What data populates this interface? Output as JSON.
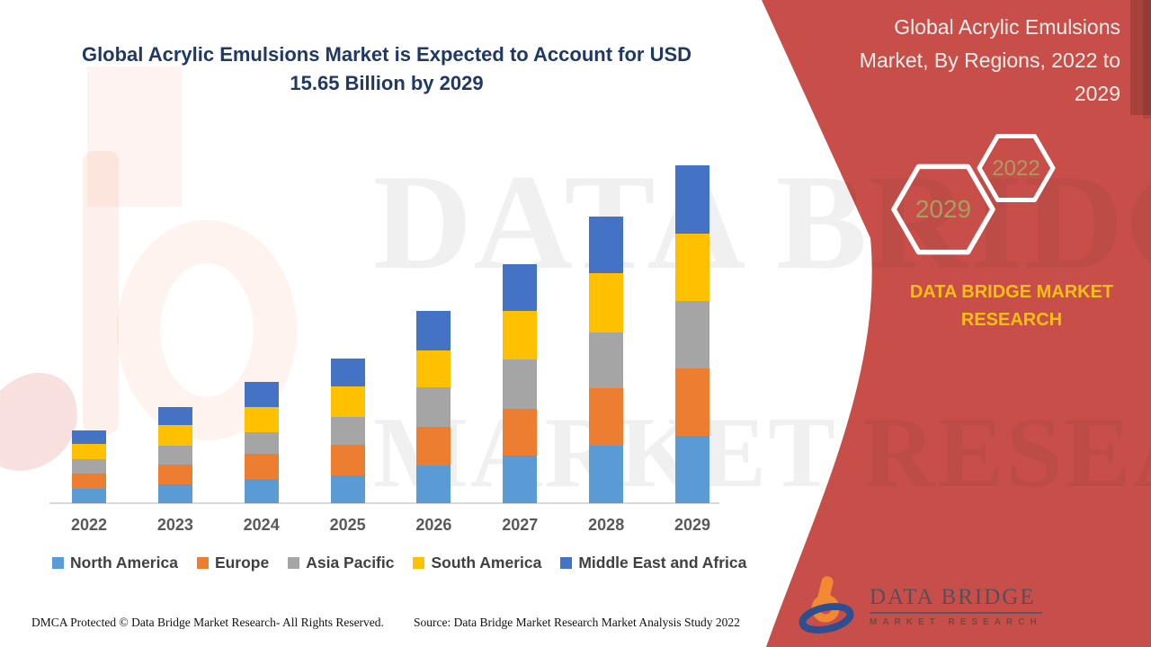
{
  "page": {
    "title_lines": [
      "Global Acrylic Emulsions Market is Expected to Account for USD",
      "15.65 Billion by 2029"
    ]
  },
  "right_panel": {
    "background_color": "#C84F49",
    "title_lines": [
      "Global Acrylic Emulsions",
      "Market, By Regions, 2022 to",
      "2029"
    ],
    "hexagons": [
      {
        "label": "2029"
      },
      {
        "label": "2022"
      }
    ],
    "brand_text_lines": [
      "DATA BRIDGE MARKET",
      "RESEARCH"
    ],
    "accent_gold": "#F5C110"
  },
  "brand_logo": {
    "name": "DATA BRIDGE",
    "tagline": "MARKET RESEARCH"
  },
  "footer": {
    "dmca": "DMCA Protected © Data Bridge Market Research- All Rights Reserved.",
    "source": "Source: Data Bridge Market Research Market Analysis Study 2022"
  },
  "watermark": {
    "line1": "DATA BRIDGE",
    "line2": "MARKET RESEARCH"
  },
  "chart_data": {
    "type": "bar",
    "stacked": true,
    "title": "Global Acrylic Emulsions Market is Expected to Account for USD 15.65 Billion by 2029",
    "xlabel": "",
    "ylabel": "",
    "unit": "USD Billion (estimated from bar heights; 2029 total labeled 15.65)",
    "categories": [
      "2022",
      "2023",
      "2024",
      "2025",
      "2026",
      "2027",
      "2028",
      "2029"
    ],
    "series": [
      {
        "name": "North America",
        "color": "#5B9BD5",
        "values": [
          0.67,
          0.87,
          1.12,
          1.29,
          1.75,
          2.21,
          2.66,
          3.12
        ]
      },
      {
        "name": "Europe",
        "color": "#ED7D31",
        "values": [
          0.71,
          0.92,
          1.17,
          1.42,
          1.79,
          2.16,
          2.66,
          3.12
        ]
      },
      {
        "name": "Asia Pacific",
        "color": "#A5A5A5",
        "values": [
          0.67,
          0.87,
          1.0,
          1.29,
          1.83,
          2.29,
          2.58,
          3.12
        ]
      },
      {
        "name": "South America",
        "color": "#FFC000",
        "values": [
          0.71,
          0.96,
          1.17,
          1.42,
          1.71,
          2.25,
          2.75,
          3.12
        ]
      },
      {
        "name": "Middle East and Africa",
        "color": "#4472C4",
        "values": [
          0.62,
          0.83,
          1.17,
          1.29,
          1.83,
          2.16,
          2.62,
          3.17
        ]
      }
    ],
    "totals": [
      3.38,
      4.45,
      5.63,
      6.71,
      8.91,
      11.07,
      13.27,
      15.65
    ],
    "ylim": [
      0,
      16
    ],
    "grid": false,
    "y_axis_shown": false,
    "legend_position": "bottom"
  }
}
